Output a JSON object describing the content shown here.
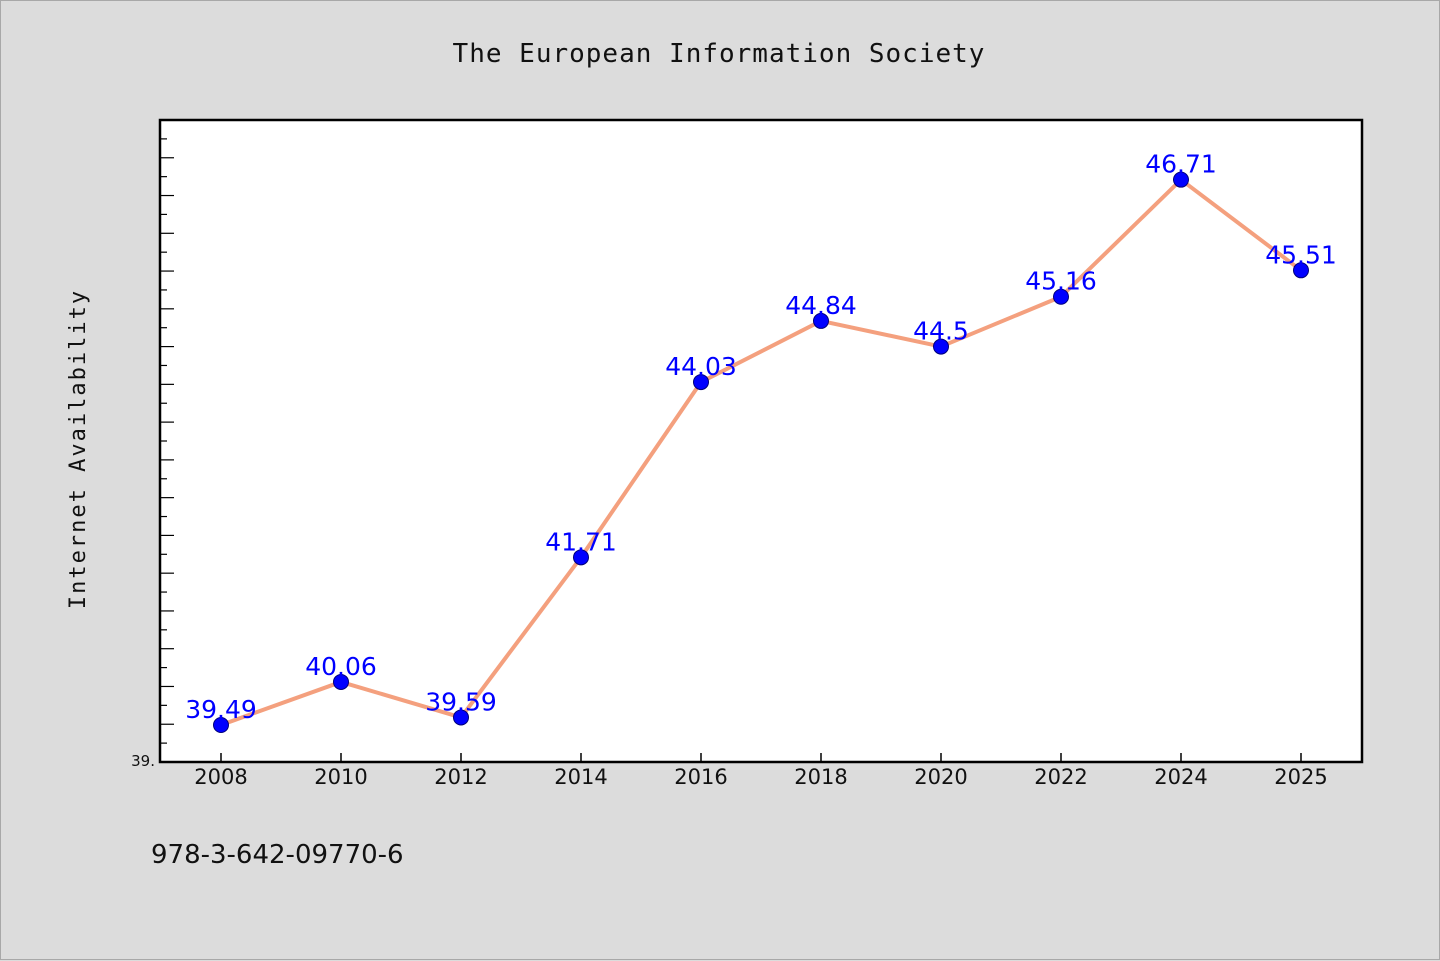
{
  "chart_data": {
    "type": "line",
    "title": "The European Information Society",
    "xlabel": "",
    "ylabel": "Internet Availability",
    "categories": [
      "2008",
      "2010",
      "2012",
      "2014",
      "2016",
      "2018",
      "2020",
      "2022",
      "2024",
      "2025"
    ],
    "series": [
      {
        "values": [
          39.49,
          40.06,
          39.59,
          41.71,
          44.03,
          44.84,
          44.5,
          45.16,
          46.71,
          45.51
        ],
        "labels": [
          "39.49",
          "40.06",
          "39.59",
          "41.71",
          "44.03",
          "44.84",
          "44.5",
          "45.16",
          "46.71",
          "45.51"
        ]
      }
    ],
    "ylim": [
      39.0,
      47.5
    ],
    "ytick_min_label": "39.",
    "grid": false,
    "legend": "none",
    "colors": {
      "line": "#f4a07e",
      "marker": "#0000ff",
      "label": "#0000ff"
    }
  },
  "footer": {
    "isbn": "978-3-642-09770-6"
  }
}
